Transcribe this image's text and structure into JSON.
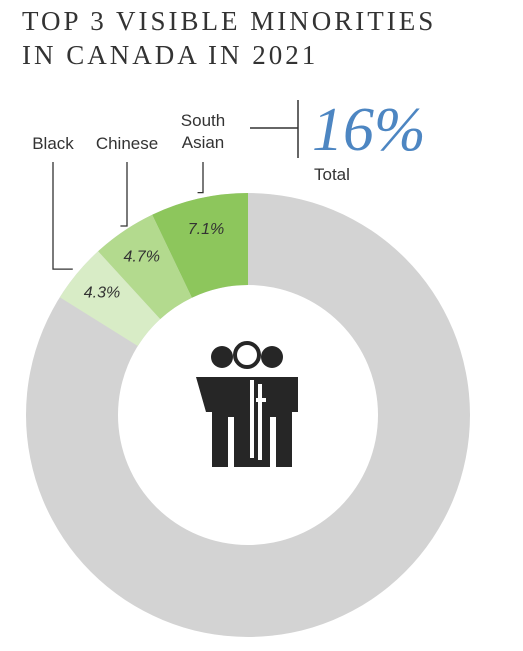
{
  "chart_data": {
    "type": "donut",
    "title": [
      "TOP 3 VISIBLE MINORITIES",
      "IN CANADA IN 2021"
    ],
    "categories": [
      "South Asian",
      "Chinese",
      "Black"
    ],
    "values": [
      7.1,
      4.7,
      4.3
    ],
    "value_labels": [
      "7.1%",
      "4.7%",
      "4.3%"
    ],
    "colors": [
      "#8dc65c",
      "#b3da8e",
      "#d8ecc6"
    ],
    "rest_color": "#d3d3d3",
    "total": {
      "value": 16,
      "label": "16%"
    },
    "total_caption": "Total"
  }
}
